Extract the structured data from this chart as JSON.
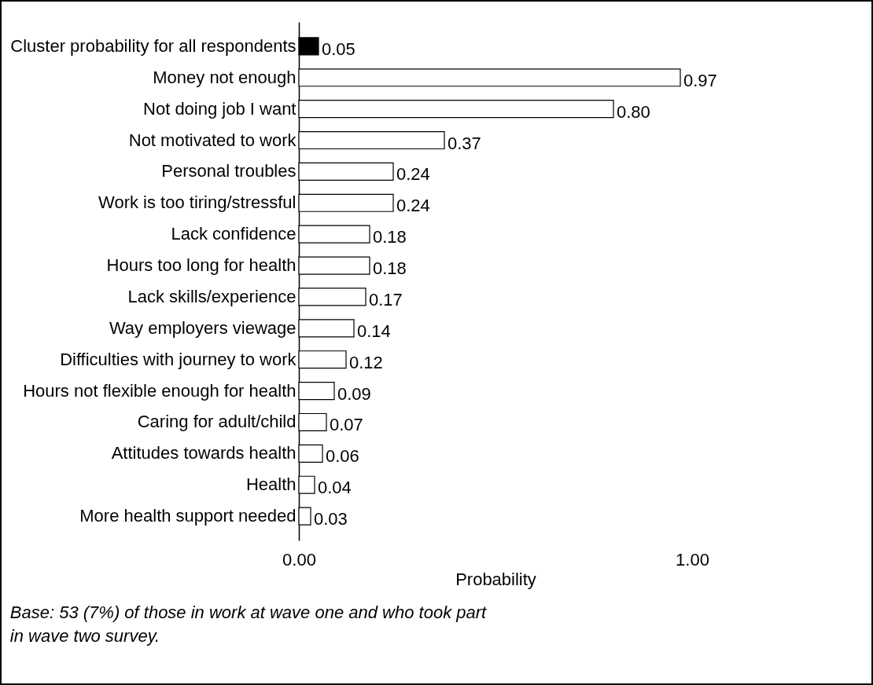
{
  "chart_data": {
    "type": "bar",
    "orientation": "horizontal",
    "categories": [
      "Cluster probability for all respondents",
      "Money not enough",
      "Not doing job I want",
      "Not motivated to work",
      "Personal troubles",
      "Work is too tiring/stressful",
      "Lack confidence",
      "Hours too long for health",
      "Lack skills/experience",
      "Way employers viewage",
      "Difficulties with journey to work",
      "Hours not flexible enough for health",
      "Caring for adult/child",
      "Attitudes towards health",
      "Health",
      "More health support needed"
    ],
    "values": [
      0.05,
      0.97,
      0.8,
      0.37,
      0.24,
      0.24,
      0.18,
      0.18,
      0.17,
      0.14,
      0.12,
      0.09,
      0.07,
      0.06,
      0.04,
      0.03
    ],
    "colors": [
      "#000000",
      "#ffffff",
      "#ffffff",
      "#ffffff",
      "#ffffff",
      "#ffffff",
      "#ffffff",
      "#ffffff",
      "#ffffff",
      "#ffffff",
      "#ffffff",
      "#ffffff",
      "#ffffff",
      "#ffffff",
      "#ffffff",
      "#ffffff"
    ],
    "value_labels": [
      "0.05",
      "0.97",
      "0.80",
      "0.37",
      "0.24",
      "0.24",
      "0.18",
      "0.18",
      "0.17",
      "0.14",
      "0.12",
      "0.09",
      "0.07",
      "0.06",
      "0.04",
      "0.03"
    ],
    "xlabel": "Probability",
    "xlim": [
      0,
      1
    ],
    "xticks": [
      {
        "value": 0,
        "label": "0.00"
      },
      {
        "value": 1,
        "label": "1.00"
      }
    ],
    "grid": false,
    "legend": false,
    "annotations": [
      "Base: 53 (7%) of those in work at wave one and who took part in wave two survey."
    ]
  }
}
